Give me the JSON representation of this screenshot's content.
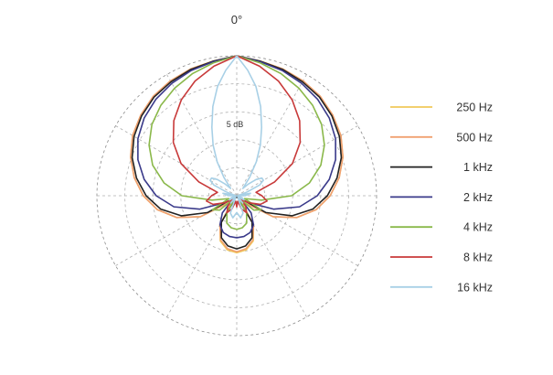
{
  "chart_data": {
    "type": "polar",
    "title": "",
    "angle_label": "0°",
    "radial_label": "5 dB",
    "grid": true,
    "legend_position": "right",
    "series": [
      {
        "name": "250 Hz",
        "color": "#f0c85a",
        "points": [
          [
            0,
            0
          ],
          [
            10,
            -0.6
          ],
          [
            20,
            -0.9
          ],
          [
            30,
            -1.3
          ],
          [
            40,
            -1.8
          ],
          [
            50,
            -2.6
          ],
          [
            60,
            -3.5
          ],
          [
            70,
            -4.8
          ],
          [
            80,
            -6.4
          ],
          [
            90,
            -8.3
          ],
          [
            100,
            -10.6
          ],
          [
            110,
            -13.6
          ],
          [
            120,
            -17.5
          ],
          [
            130,
            -23
          ],
          [
            140,
            -24
          ],
          [
            150,
            -19
          ],
          [
            160,
            -16.4
          ],
          [
            170,
            -15.2
          ],
          [
            180,
            -14.8
          ]
        ]
      },
      {
        "name": "500 Hz",
        "color": "#f0a070",
        "points": [
          [
            0,
            0
          ],
          [
            10,
            -0.6
          ],
          [
            20,
            -0.9
          ],
          [
            30,
            -1.3
          ],
          [
            40,
            -1.8
          ],
          [
            50,
            -2.6
          ],
          [
            60,
            -3.5
          ],
          [
            70,
            -4.8
          ],
          [
            80,
            -6.4
          ],
          [
            90,
            -8.3
          ],
          [
            100,
            -10.6
          ],
          [
            110,
            -13.6
          ],
          [
            120,
            -17.5
          ],
          [
            130,
            -23
          ],
          [
            140,
            -24
          ],
          [
            150,
            -19
          ],
          [
            160,
            -16.6
          ],
          [
            170,
            -15.4
          ],
          [
            180,
            -15
          ]
        ]
      },
      {
        "name": "1 kHz",
        "color": "#222222",
        "points": [
          [
            0,
            0
          ],
          [
            10,
            -0.6
          ],
          [
            20,
            -1
          ],
          [
            30,
            -1.5
          ],
          [
            40,
            -2
          ],
          [
            50,
            -2.8
          ],
          [
            60,
            -3.8
          ],
          [
            70,
            -5.1
          ],
          [
            80,
            -6.8
          ],
          [
            90,
            -8.8
          ],
          [
            100,
            -11.2
          ],
          [
            110,
            -14.5
          ],
          [
            120,
            -19
          ],
          [
            130,
            -24.5
          ],
          [
            140,
            -25
          ],
          [
            150,
            -19.5
          ],
          [
            160,
            -17
          ],
          [
            170,
            -15.9
          ],
          [
            180,
            -15.5
          ]
        ]
      },
      {
        "name": "2 kHz",
        "color": "#3a3a8a",
        "points": [
          [
            0,
            0
          ],
          [
            10,
            -0.7
          ],
          [
            20,
            -1.2
          ],
          [
            30,
            -1.8
          ],
          [
            40,
            -2.5
          ],
          [
            50,
            -3.4
          ],
          [
            60,
            -4.6
          ],
          [
            70,
            -6.2
          ],
          [
            80,
            -8.2
          ],
          [
            90,
            -10.6
          ],
          [
            100,
            -13.6
          ],
          [
            110,
            -18
          ],
          [
            120,
            -22.5
          ],
          [
            130,
            -24
          ],
          [
            140,
            -21
          ],
          [
            150,
            -19
          ],
          [
            160,
            -18
          ],
          [
            170,
            -17.6
          ],
          [
            180,
            -17.5
          ]
        ]
      },
      {
        "name": "4 kHz",
        "color": "#8ab84a",
        "points": [
          [
            0,
            0
          ],
          [
            10,
            -0.9
          ],
          [
            20,
            -1.8
          ],
          [
            30,
            -2.8
          ],
          [
            40,
            -3.9
          ],
          [
            50,
            -5.2
          ],
          [
            60,
            -6.9
          ],
          [
            70,
            -9
          ],
          [
            80,
            -11.8
          ],
          [
            90,
            -15.2
          ],
          [
            100,
            -20.5
          ],
          [
            110,
            -23.5
          ],
          [
            120,
            -20
          ],
          [
            130,
            -21
          ],
          [
            140,
            -24.5
          ],
          [
            150,
            -21.5
          ],
          [
            160,
            -19.8
          ],
          [
            170,
            -19.2
          ],
          [
            180,
            -19
          ]
        ]
      },
      {
        "name": "8 kHz",
        "color": "#c83a3a",
        "points": [
          [
            0,
            0
          ],
          [
            10,
            -1.5
          ],
          [
            20,
            -3.2
          ],
          [
            30,
            -5.2
          ],
          [
            40,
            -7.5
          ],
          [
            50,
            -10.2
          ],
          [
            60,
            -13.5
          ],
          [
            70,
            -17.8
          ],
          [
            80,
            -21.5
          ],
          [
            90,
            -20.5
          ],
          [
            100,
            -19.5
          ],
          [
            110,
            -20.5
          ],
          [
            120,
            -22.5
          ],
          [
            130,
            -24
          ],
          [
            140,
            -22.5
          ],
          [
            150,
            -21.5
          ],
          [
            160,
            -22.5
          ],
          [
            170,
            -24
          ],
          [
            180,
            -23
          ]
        ]
      },
      {
        "name": "16 kHz",
        "color": "#a8d0e6",
        "points": [
          [
            0,
            0
          ],
          [
            5,
            -2.5
          ],
          [
            10,
            -5.2
          ],
          [
            15,
            -8.5
          ],
          [
            20,
            -12
          ],
          [
            25,
            -15
          ],
          [
            30,
            -18
          ],
          [
            35,
            -21
          ],
          [
            40,
            -23.3
          ],
          [
            45,
            -22
          ],
          [
            50,
            -20.5
          ],
          [
            55,
            -19.5
          ],
          [
            60,
            -19.5
          ],
          [
            65,
            -20.5
          ],
          [
            70,
            -23
          ],
          [
            75,
            -24.5
          ],
          [
            80,
            -22.5
          ],
          [
            90,
            -23.5
          ],
          [
            100,
            -25
          ],
          [
            110,
            -24
          ],
          [
            120,
            -23.5
          ],
          [
            130,
            -24.8
          ],
          [
            140,
            -23.3
          ],
          [
            150,
            -24.5
          ],
          [
            160,
            -21.7
          ],
          [
            170,
            -21
          ],
          [
            180,
            -22
          ]
        ]
      }
    ]
  }
}
